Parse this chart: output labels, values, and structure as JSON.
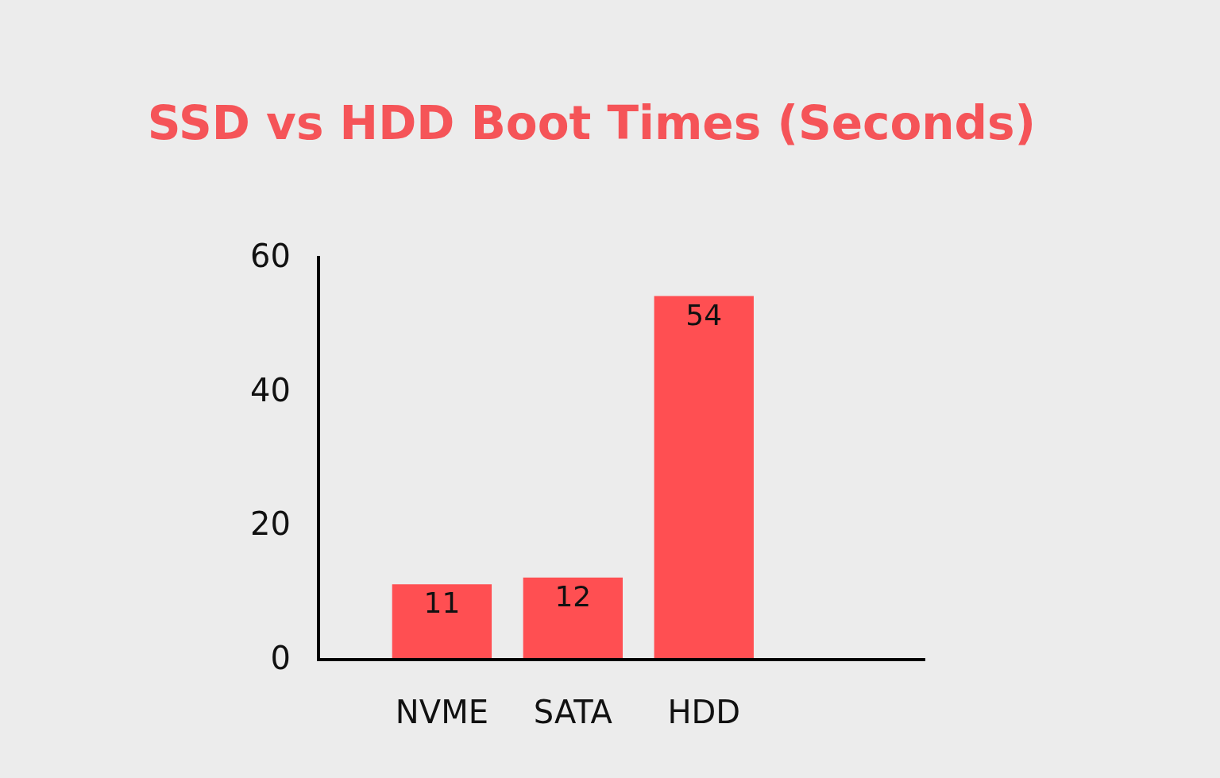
{
  "chart_data": {
    "type": "bar",
    "title": "SSD vs HDD Boot Times (Seconds)",
    "categories": [
      "NVME",
      "SATA",
      "HDD"
    ],
    "values": [
      11,
      12,
      54
    ],
    "color": "#ff4f52",
    "ylim": [
      0,
      60
    ],
    "yticks": [
      0,
      20,
      40,
      60
    ],
    "grid": false,
    "legend": false,
    "data_labels": true
  }
}
